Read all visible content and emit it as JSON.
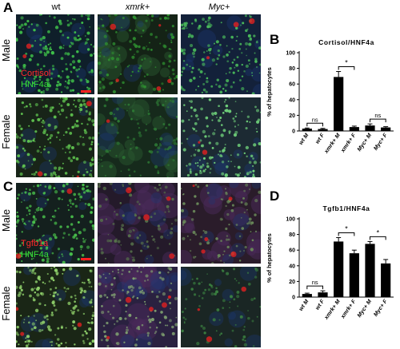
{
  "figure": {
    "panel_labels": {
      "A": "A",
      "B": "B",
      "C": "C",
      "D": "D"
    },
    "columns": [
      "wt",
      "xmrk+",
      "Myc+"
    ],
    "rows": [
      "Male",
      "Female"
    ],
    "stains_top": {
      "red": "Cortisol",
      "green": "HNF4a"
    },
    "stains_bottom": {
      "red": "Tgfb1a",
      "green": "HNF4a"
    },
    "colors": {
      "red_stain": "#ff2a2a",
      "green_stain": "#34e034",
      "bar": "#000000",
      "scale_bar": "#ff2020"
    }
  },
  "chart_data": [
    {
      "type": "bar",
      "title": "Cortisol/HNF4a",
      "ylabel": "% of hepatocytes",
      "ylim": [
        0,
        100
      ],
      "yticks": [
        "0",
        "20",
        "40",
        "60",
        "80",
        "100"
      ],
      "categories": [
        "wt M",
        "wt F",
        "xmrk+ M",
        "xmrk+ F",
        "Myc+ M",
        "Myc+ F"
      ],
      "values": [
        3,
        2.5,
        69,
        5,
        7,
        4.5
      ],
      "errors": [
        0.8,
        0.8,
        7,
        1.2,
        2,
        1
      ],
      "significance": [
        {
          "from": 0,
          "to": 1,
          "label": "ns"
        },
        {
          "from": 2,
          "to": 3,
          "label": "*"
        },
        {
          "from": 4,
          "to": 5,
          "label": "ns"
        }
      ]
    },
    {
      "type": "bar",
      "title": "Tgfb1/HNF4a",
      "ylabel": "% of hepatocytes",
      "ylim": [
        0,
        100
      ],
      "yticks": [
        "0",
        "20",
        "40",
        "60",
        "80",
        "100"
      ],
      "categories": [
        "wt M",
        "wt F",
        "xmrk+ M",
        "xmrk+ F",
        "Myc+ M",
        "Myc+ F"
      ],
      "values": [
        4,
        6,
        71,
        56,
        68,
        43
      ],
      "errors": [
        1,
        2,
        5,
        4,
        3,
        5
      ],
      "significance": [
        {
          "from": 0,
          "to": 1,
          "label": "ns"
        },
        {
          "from": 2,
          "to": 3,
          "label": "*"
        },
        {
          "from": 4,
          "to": 5,
          "label": "*"
        }
      ]
    }
  ]
}
